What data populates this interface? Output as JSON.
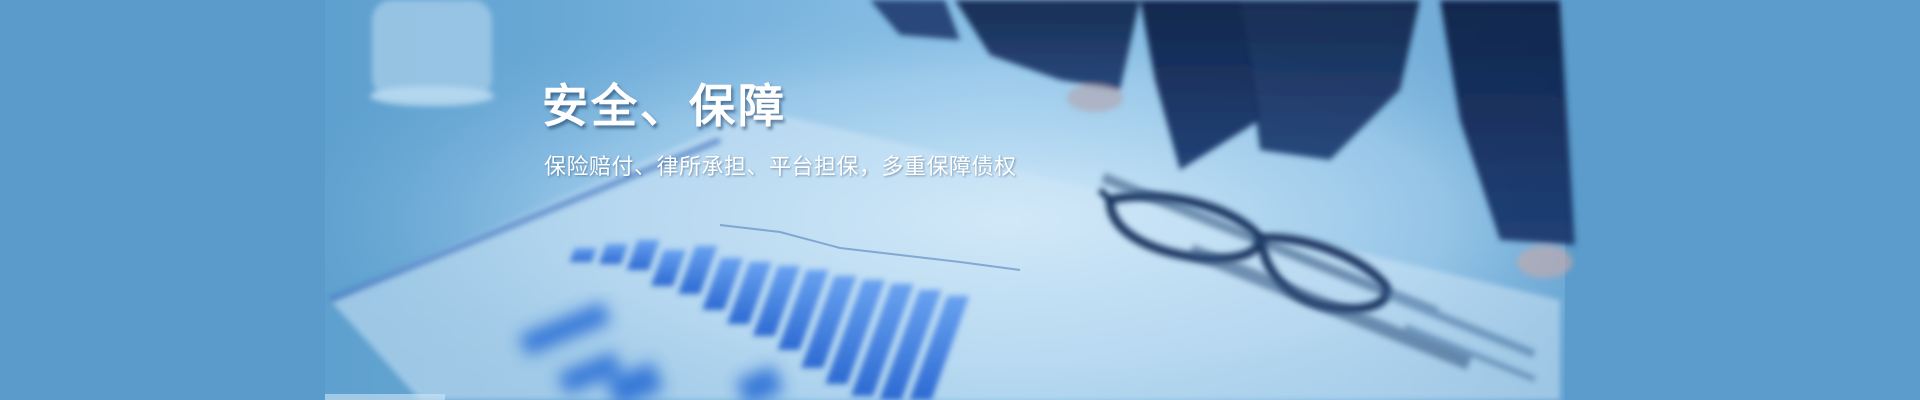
{
  "banner": {
    "title": "安全、保障",
    "subtitle": "保险赔付、律所承担、平台担保，多重保障债权",
    "colors": {
      "edge_blue": "#5b9ccc",
      "photo_light": "#b9dcf2",
      "bar_blue": "#2a6fd6",
      "suit_navy": "#10244f",
      "text": "#ffffff"
    }
  }
}
